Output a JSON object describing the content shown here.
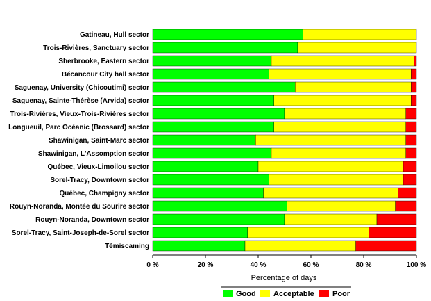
{
  "chart_data": {
    "type": "bar",
    "orientation": "horizontal",
    "stacked": true,
    "title": "",
    "xlabel": "Percentage of days",
    "ylabel": "",
    "xlim": [
      0,
      100
    ],
    "xticks": [
      "0 %",
      "20 %",
      "40 %",
      "60 %",
      "80 %",
      "100 %"
    ],
    "grid": false,
    "legend_position": "bottom",
    "categories": [
      "Gatineau, Hull sector",
      "Trois-Rivières, Sanctuary sector",
      "Sherbrooke, Eastern sector",
      "Bécancour City hall sector",
      "Saguenay, University (Chicoutimi) sector",
      "Saguenay, Sainte-Thérèse (Arvida) sector",
      "Trois-Rivières, Vieux-Trois-Rivières sector",
      "Longueuil, Parc Océanic (Brossard) sector",
      "Shawinigan, Saint-Marc sector",
      "Shawinigan, L'Assomption sector",
      "Québec, Vieux-Limoilou sector",
      "Sorel-Tracy,  Downtown sector",
      "Québec, Champigny sector",
      "Rouyn-Noranda, Montée du Sourire sector",
      "Rouyn-Noranda,  Downtown sector",
      "Sorel-Tracy, Saint-Joseph-de-Sorel sector",
      "Témiscaming"
    ],
    "series": [
      {
        "name": "Good",
        "color": "#00ff00",
        "values": [
          57,
          55,
          45,
          44,
          54,
          46,
          50,
          46,
          39,
          45,
          40,
          44,
          42,
          51,
          50,
          36,
          35
        ]
      },
      {
        "name": "Acceptable",
        "color": "#ffff00",
        "values": [
          43,
          45,
          54,
          54,
          44,
          52,
          46,
          50,
          57,
          51,
          55,
          51,
          51,
          41,
          35,
          46,
          42
        ]
      },
      {
        "name": "Poor",
        "color": "#ff0000",
        "values": [
          0,
          0,
          1,
          2,
          2,
          2,
          4,
          4,
          4,
          4,
          5,
          5,
          7,
          8,
          15,
          18,
          23
        ]
      }
    ]
  }
}
